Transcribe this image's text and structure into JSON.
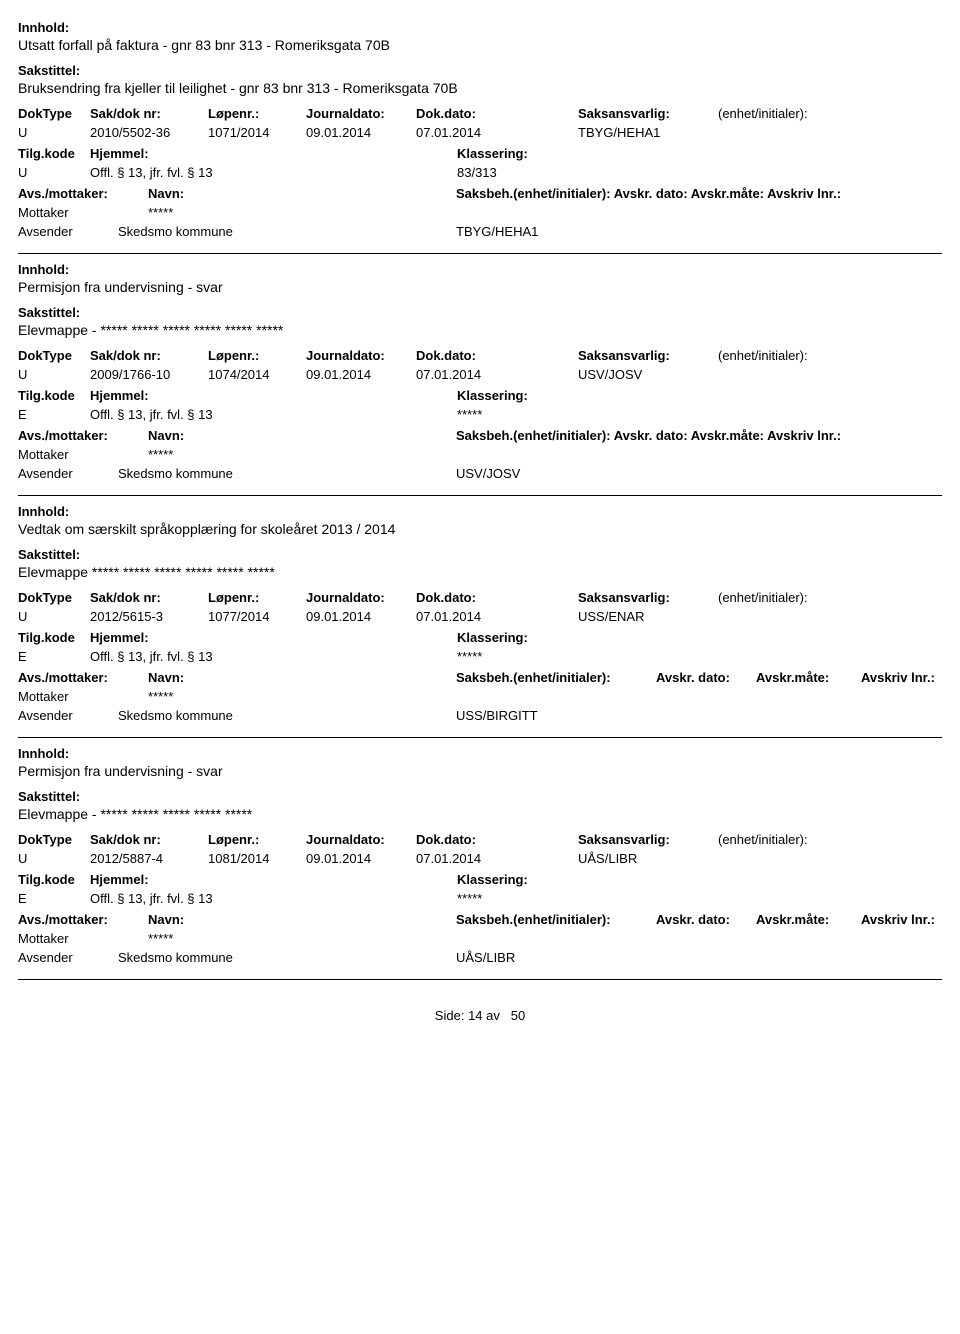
{
  "labels": {
    "innhold": "Innhold:",
    "sakstittel": "Sakstittel:",
    "doktype": "DokType",
    "sakdok": "Sak/dok nr:",
    "lopenr": "Løpenr.:",
    "journal": "Journaldato:",
    "dokdato": "Dok.dato:",
    "saksansv": "Saksansvarlig:",
    "enhet": "(enhet/initialer):",
    "tilgkode": "Tilg.kode",
    "hjemmel": "Hjemmel:",
    "klasser": "Klassering:",
    "avs": "Avs./mottaker:",
    "navn": "Navn:",
    "saksbeh_full": "Saksbeh.(enhet/initialer): Avskr. dato:  Avskr.måte:  Avskriv lnr.:",
    "saksbeh": "Saksbeh.(enhet/initialer):",
    "avskrdato": "Avskr. dato:",
    "avskrmate": "Avskr.måte:",
    "avskriv": "Avskriv lnr.:",
    "mottaker": "Mottaker",
    "avsender": "Avsender"
  },
  "records": [
    {
      "innhold": "Utsatt forfall på faktura - gnr 83 bnr 313 - Romeriksgata 70B",
      "sakstittel": "Bruksendring fra kjeller til leilighet - gnr 83 bnr 313 - Romeriksgata 70B",
      "doktype": "U",
      "sakdok": "2010/5502-36",
      "lopenr": "1071/2014",
      "journal": "09.01.2014",
      "dokdato": "07.01.2014",
      "saksansv": "TBYG/HEHA1",
      "tilgkode": "U",
      "hjemmel": "Offl. § 13, jfr. fvl. § 13",
      "klasser": "83/313",
      "mottaker": "*****",
      "avsender": "Skedsmo kommune",
      "enhetinit": "TBYG/HEHA1",
      "split_saksbeh": false
    },
    {
      "innhold": "Permisjon fra undervisning - svar",
      "sakstittel": "Elevmappe - ***** ***** ***** ***** ***** *****",
      "doktype": "U",
      "sakdok": "2009/1766-10",
      "lopenr": "1074/2014",
      "journal": "09.01.2014",
      "dokdato": "07.01.2014",
      "saksansv": "USV/JOSV",
      "tilgkode": "E",
      "hjemmel": "Offl. § 13, jfr. fvl. § 13",
      "klasser": "*****",
      "mottaker": "*****",
      "avsender": "Skedsmo kommune",
      "enhetinit": "USV/JOSV",
      "split_saksbeh": false
    },
    {
      "innhold": "Vedtak om særskilt språkopplæring for skoleåret 2013 / 2014",
      "sakstittel": "Elevmappe ***** ***** ***** ***** ***** *****",
      "doktype": "U",
      "sakdok": "2012/5615-3",
      "lopenr": "1077/2014",
      "journal": "09.01.2014",
      "dokdato": "07.01.2014",
      "saksansv": "USS/ENAR",
      "tilgkode": "E",
      "hjemmel": "Offl. § 13, jfr. fvl. § 13",
      "klasser": "*****",
      "mottaker": "*****",
      "avsender": "Skedsmo kommune",
      "enhetinit": "USS/BIRGITT",
      "split_saksbeh": true
    },
    {
      "innhold": "Permisjon fra undervisning - svar",
      "sakstittel": "Elevmappe - ***** ***** ***** ***** *****",
      "doktype": "U",
      "sakdok": "2012/5887-4",
      "lopenr": "1081/2014",
      "journal": "09.01.2014",
      "dokdato": "07.01.2014",
      "saksansv": "UÅS/LIBR",
      "tilgkode": "E",
      "hjemmel": "Offl. § 13, jfr. fvl. § 13",
      "klasser": "*****",
      "mottaker": "*****",
      "avsender": "Skedsmo kommune",
      "enhetinit": "UÅS/LIBR",
      "split_saksbeh": true
    }
  ],
  "footer": {
    "side": "Side:",
    "current": "14",
    "av": "av",
    "total": "50"
  }
}
